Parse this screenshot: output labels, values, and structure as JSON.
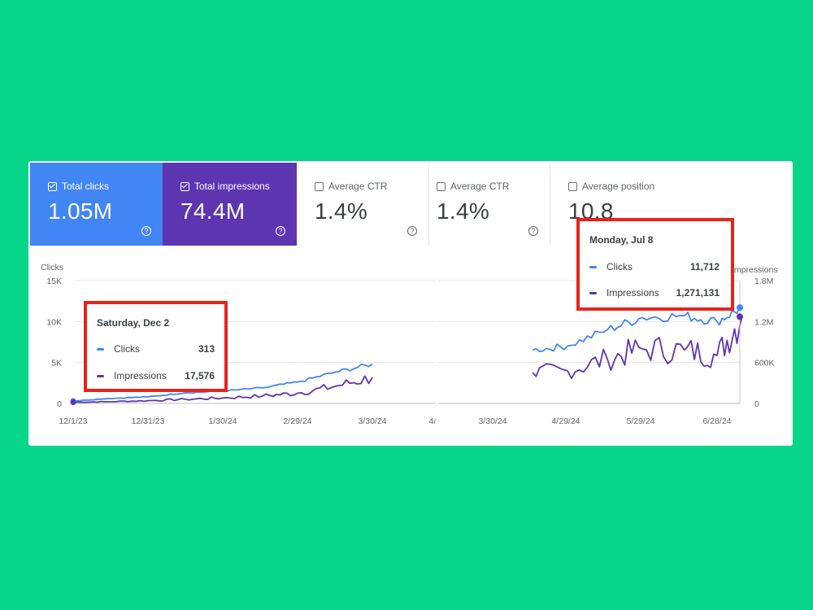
{
  "cards": {
    "clicks": {
      "label": "Total clicks",
      "value": "1.05M",
      "checked": true
    },
    "impressions": {
      "label": "Total impressions",
      "value": "74.4M",
      "checked": true
    },
    "ctr1": {
      "label": "Average CTR",
      "value": "1.4%",
      "checked": false
    },
    "ctr2": {
      "label": "Average CTR",
      "value": "1.4%",
      "checked": false
    },
    "position": {
      "label": "Average position",
      "value": "10.8",
      "checked": false
    }
  },
  "help_glyph": "?",
  "tooltips": {
    "left": {
      "date": "Saturday, Dec 2",
      "clicks_label": "Clicks",
      "clicks_value": "313",
      "impressions_label": "Impressions",
      "impressions_value": "17,576"
    },
    "right": {
      "date": "Monday, Jul 8",
      "clicks_label": "Clicks",
      "clicks_value": "11,712",
      "impressions_label": "Impressions",
      "impressions_value": "1,271,131"
    }
  },
  "colors": {
    "clicks": "#4285f4",
    "impressions": "#5e35b1",
    "highlight_box": "#e8231c",
    "background": "#07d68a"
  },
  "chart_data": {
    "type": "line",
    "left_axis": {
      "label": "Clicks",
      "ticks": [
        "0",
        "5K",
        "10K",
        "15K"
      ],
      "ylim": [
        0,
        15000
      ]
    },
    "right_axis": {
      "label": "Impressions",
      "ticks": [
        "0",
        "600K",
        "1.2M",
        "1.8M"
      ],
      "ylim": [
        0,
        1800000
      ]
    },
    "x_ticks_segment1": [
      "12/1/23",
      "12/31/23",
      "1/30/24",
      "2/29/24",
      "3/30/24",
      "4/"
    ],
    "x_ticks_segment2": [
      "3/30/24",
      "4/29/24",
      "5/29/24",
      "6/28/24"
    ],
    "series": [
      {
        "name": "Clicks",
        "points": [
          [
            "12/1/23",
            300
          ],
          [
            "12/15/23",
            600
          ],
          [
            "12/31/23",
            800
          ],
          [
            "1/15/24",
            1300
          ],
          [
            "1/30/24",
            1500
          ],
          [
            "2/15/24",
            1900
          ],
          [
            "2/29/24",
            2600
          ],
          [
            "3/15/24",
            3800
          ],
          [
            "3/30/24",
            4800
          ],
          [
            "4/15/24",
            6500
          ],
          [
            "4/29/24",
            7000
          ],
          [
            "5/15/24",
            9000
          ],
          [
            "5/29/24",
            10500
          ],
          [
            "6/15/24",
            10700
          ],
          [
            "6/28/24",
            10000
          ],
          [
            "7/8/24",
            11712
          ]
        ]
      },
      {
        "name": "Impressions",
        "points": [
          [
            "12/1/23",
            17576
          ],
          [
            "12/15/23",
            25000
          ],
          [
            "12/31/23",
            40000
          ],
          [
            "1/15/24",
            60000
          ],
          [
            "1/30/24",
            80000
          ],
          [
            "2/15/24",
            110000
          ],
          [
            "2/29/24",
            150000
          ],
          [
            "3/15/24",
            250000
          ],
          [
            "3/30/24",
            380000
          ],
          [
            "4/15/24",
            450000
          ],
          [
            "4/29/24",
            480000
          ],
          [
            "5/15/24",
            650000
          ],
          [
            "5/29/24",
            800000
          ],
          [
            "6/15/24",
            780000
          ],
          [
            "6/28/24",
            700000
          ],
          [
            "7/8/24",
            1271131
          ]
        ]
      }
    ],
    "grid": true
  }
}
